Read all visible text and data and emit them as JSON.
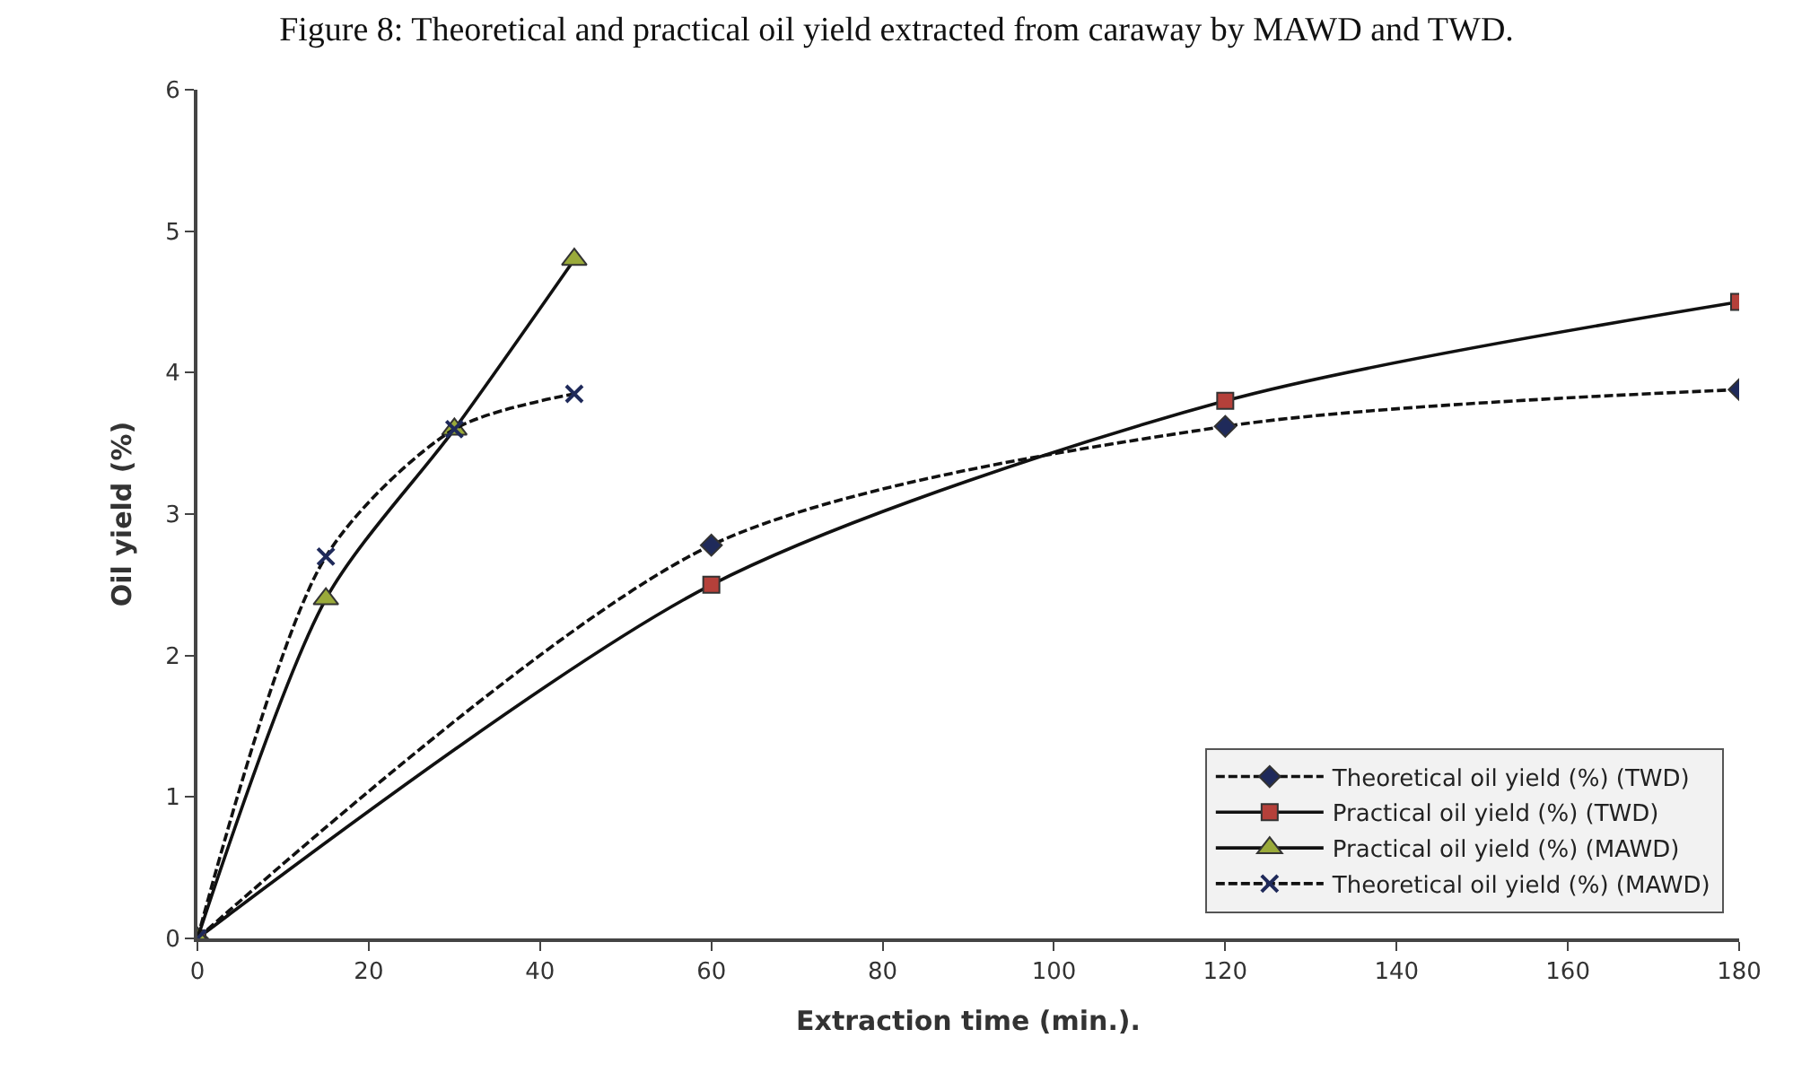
{
  "chart_data": {
    "type": "line",
    "title": "Figure 8: Theoretical and practical oil yield extracted from caraway by MAWD and TWD.",
    "xlabel": "Extraction time (min.).",
    "ylabel": "Oil yield (%)",
    "series": [
      {
        "name": "Theoretical oil yield (%) (TWD)",
        "color": "#1f2a5a",
        "x": [
          0,
          60,
          120,
          180
        ],
        "values": [
          0,
          2.78,
          3.62,
          3.88
        ],
        "marker": "diamond",
        "line_style": "dashed"
      },
      {
        "name": "Practical oil yield (%) (TWD)",
        "color": "#b5403a",
        "x": [
          0,
          60,
          120,
          180
        ],
        "values": [
          0,
          2.5,
          3.8,
          4.5
        ],
        "marker": "square",
        "line_style": "solid"
      },
      {
        "name": "Practical oil yield (%) (MAWD)",
        "color": "#9aaa3a",
        "x": [
          0,
          15,
          30,
          44
        ],
        "values": [
          0,
          2.4,
          3.6,
          4.8
        ],
        "marker": "triangle",
        "line_style": "solid"
      },
      {
        "name": "Theoretical oil yield (%) (MAWD)",
        "color": "#1f2a5a",
        "x": [
          0,
          15,
          30,
          44
        ],
        "values": [
          0,
          2.7,
          3.6,
          3.85
        ],
        "marker": "cross",
        "line_style": "dashed"
      }
    ],
    "xlim": [
      0,
      180
    ],
    "xticks": [
      0,
      20,
      40,
      60,
      80,
      100,
      120,
      140,
      160,
      180
    ],
    "ylim": [
      0,
      6
    ],
    "yticks": [
      0,
      1,
      2,
      3,
      4,
      5,
      6
    ],
    "grid": false,
    "legend": "bottom right"
  }
}
